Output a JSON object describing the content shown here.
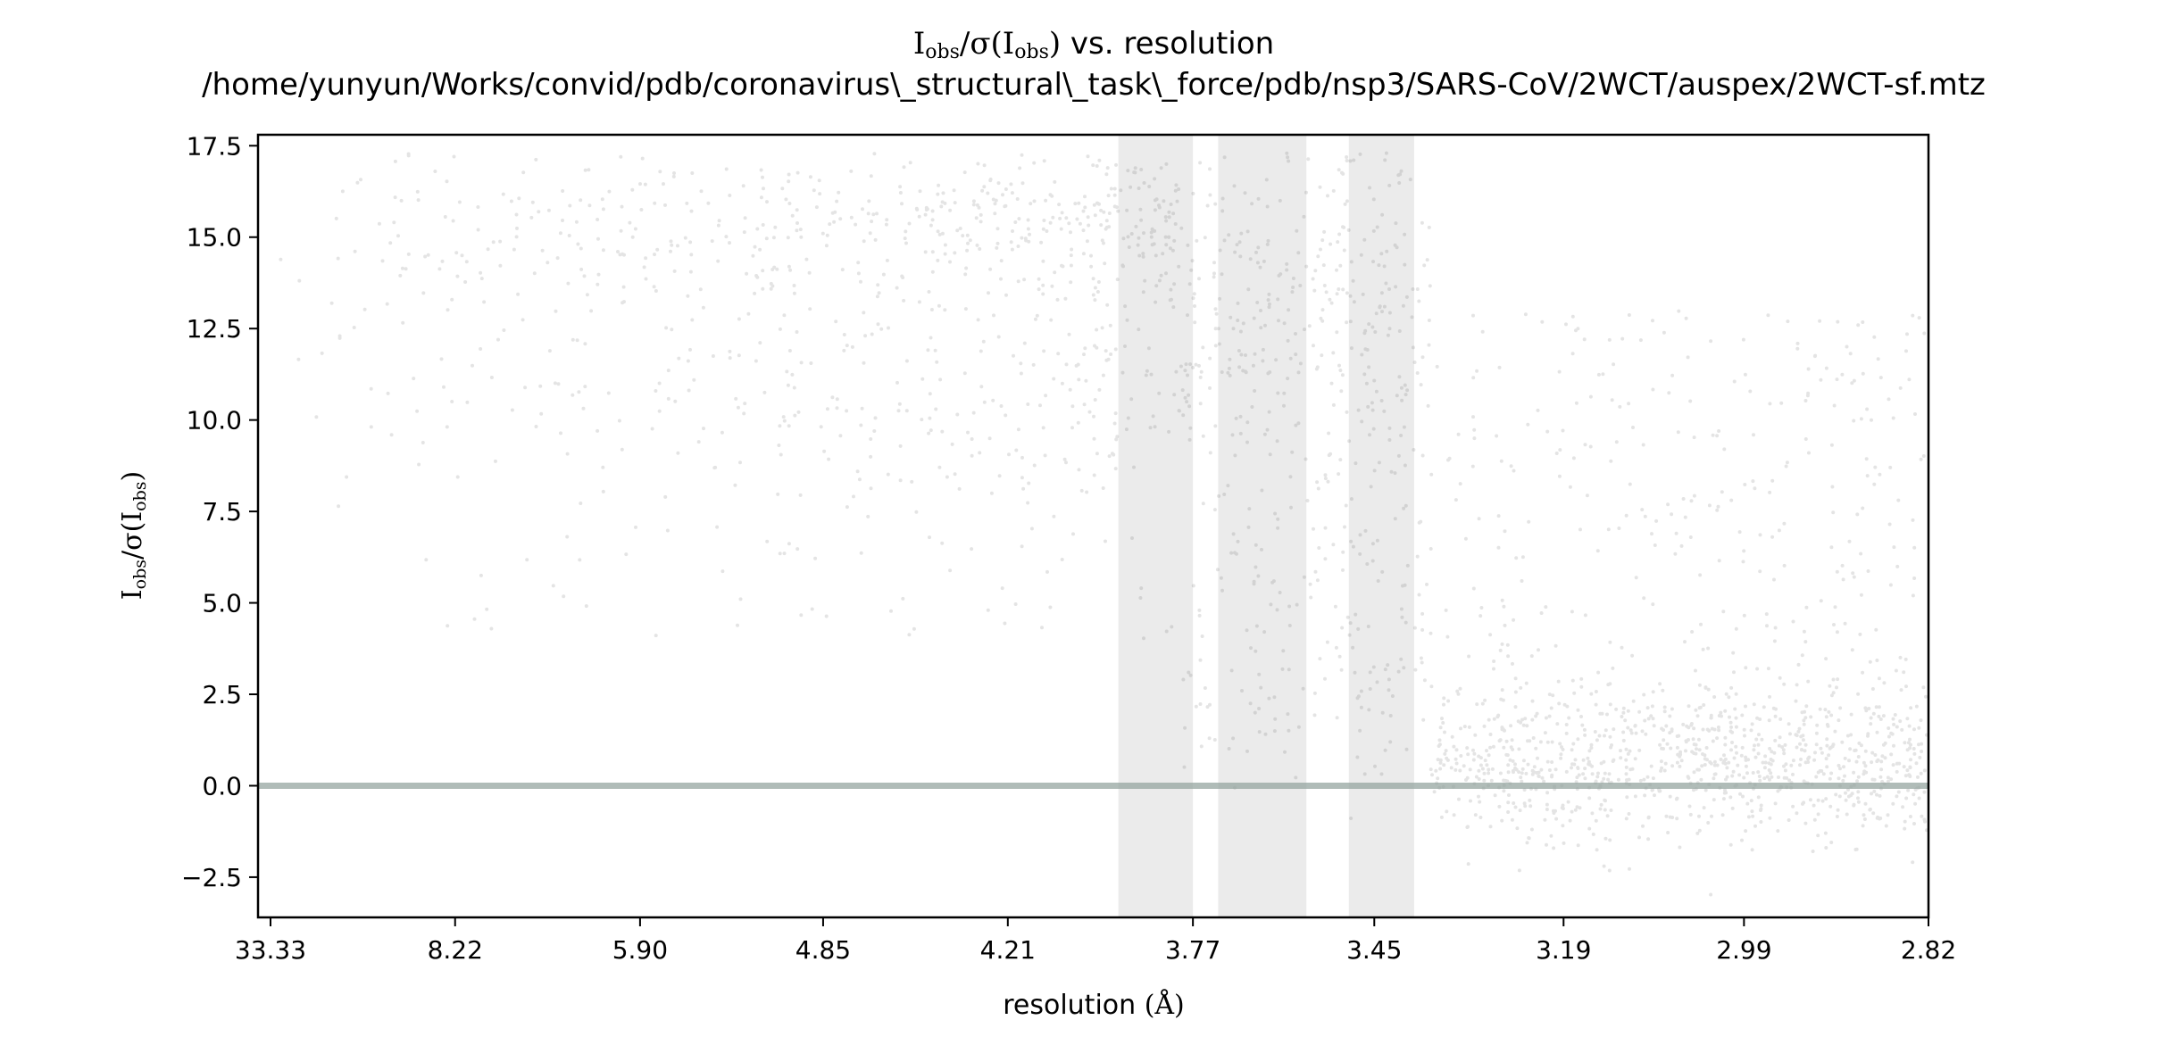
{
  "chart_data": {
    "type": "scatter",
    "title_parts": {
      "i": "I",
      "obs": "obs",
      "sigma": "/σ(I",
      "obs2": "obs",
      "close": ")",
      "rest": " vs. resolution"
    },
    "subtitle": "/home/yunyun/Works/convid/pdb/coronavirus\\_structural\\_task\\_force/pdb/nsp3/SARS-CoV/2WCT/auspex/2WCT-sf.mtz",
    "xlabel_parts": {
      "text": "resolution ",
      "unit": "(Å)"
    },
    "ylabel_parts": {
      "i": "I",
      "obs": "obs",
      "sigma": "/σ(I",
      "obs2": "obs",
      "close": ")"
    },
    "x_axis": {
      "quantity": "resolution (Å), plotted on a 1/d² scale",
      "tick_labels": [
        "33.33",
        "8.22",
        "5.90",
        "4.85",
        "4.21",
        "3.77",
        "3.45",
        "3.19",
        "2.99",
        "2.82"
      ],
      "range": [
        "33.33",
        "2.82"
      ]
    },
    "y_axis": {
      "tick_values": [
        -2.5,
        0.0,
        2.5,
        5.0,
        7.5,
        10.0,
        12.5,
        15.0,
        17.5
      ],
      "tick_labels": [
        "−2.5",
        "0.0",
        "2.5",
        "5.0",
        "7.5",
        "10.0",
        "12.5",
        "15.0",
        "17.5"
      ],
      "ylim": [
        -3.6,
        17.8
      ]
    },
    "reference_line": {
      "y": 0.0,
      "color": "#95a5a0"
    },
    "shaded_bands_resolution": [
      {
        "from": 3.93,
        "to": 3.77
      },
      {
        "from": 3.72,
        "to": 3.56
      },
      {
        "from": 3.49,
        "to": 3.39
      }
    ],
    "point_color": "#222222",
    "band_color": "#ebebeb",
    "grid": false,
    "legend": "none"
  }
}
